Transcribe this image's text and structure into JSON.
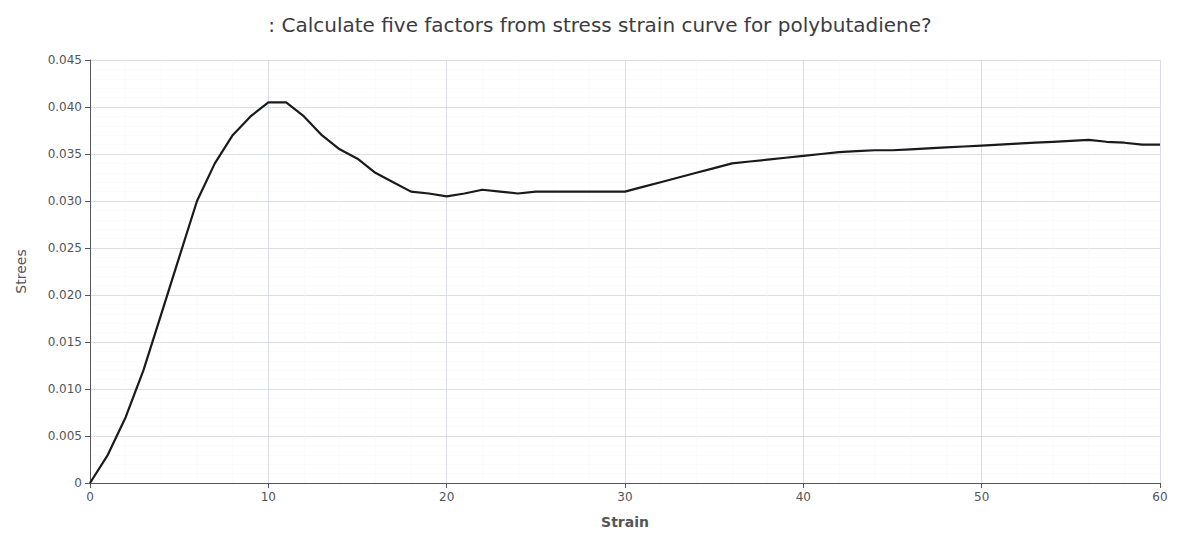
{
  "chart_data": {
    "type": "line",
    "title": ": Calculate five factors from stress strain curve for polybutadiene?",
    "x_label": "Strain",
    "y_label": "Strees",
    "x": [
      0,
      1,
      2,
      3,
      4,
      5,
      6,
      7,
      8,
      9,
      10,
      11,
      12,
      13,
      14,
      15,
      16,
      17,
      18,
      19,
      20,
      21,
      22,
      23,
      24,
      25,
      26,
      27,
      28,
      29,
      30,
      31,
      32,
      33,
      34,
      35,
      36,
      37,
      38,
      39,
      40,
      41,
      42,
      43,
      44,
      45,
      46,
      47,
      48,
      49,
      50,
      51,
      52,
      53,
      54,
      55,
      56,
      57,
      58,
      59,
      60
    ],
    "values": [
      0.0,
      0.003,
      0.007,
      0.012,
      0.018,
      0.024,
      0.03,
      0.034,
      0.037,
      0.039,
      0.0405,
      0.0405,
      0.039,
      0.037,
      0.0355,
      0.0345,
      0.033,
      0.032,
      0.031,
      0.0308,
      0.0305,
      0.0308,
      0.0312,
      0.031,
      0.0308,
      0.031,
      0.031,
      0.031,
      0.031,
      0.031,
      0.031,
      0.0315,
      0.032,
      0.0325,
      0.033,
      0.0335,
      0.034,
      0.0342,
      0.0344,
      0.0346,
      0.0348,
      0.035,
      0.0352,
      0.0353,
      0.0354,
      0.0354,
      0.0355,
      0.0356,
      0.0357,
      0.0358,
      0.0359,
      0.036,
      0.0361,
      0.0362,
      0.0363,
      0.0364,
      0.0365,
      0.0363,
      0.0362,
      0.036,
      0.036
    ],
    "color": "#1a1a1a",
    "xlim": [
      0,
      60
    ],
    "ylim": [
      0,
      0.045
    ],
    "xticks": [
      0,
      10,
      20,
      30,
      40,
      50,
      60
    ],
    "yticks": [
      0,
      0.005,
      {
        "value": 0.01,
        "label": "0.010"
      },
      0.015,
      {
        "value": 0.02,
        "label": "0.020"
      },
      0.025,
      {
        "value": 0.03,
        "label": "0.030"
      },
      0.035,
      {
        "value": 0.04,
        "label": "0.040"
      },
      0.045
    ],
    "grid": true
  }
}
